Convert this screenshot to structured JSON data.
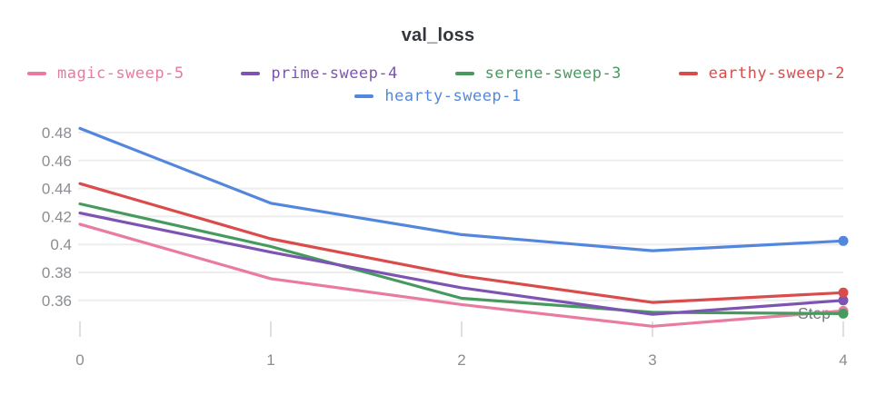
{
  "header": {
    "title": "val_loss"
  },
  "chart_data": {
    "type": "line",
    "title": "val_loss",
    "xlabel": "Step",
    "ylabel": "",
    "x": [
      0,
      1,
      2,
      3,
      4
    ],
    "x_tick_labels": [
      "0",
      "1",
      "2",
      "3",
      "4"
    ],
    "x_range": [
      0,
      4
    ],
    "y_ticks": [
      0.48,
      0.46,
      0.44,
      0.42,
      0.4,
      0.38,
      0.36
    ],
    "y_tick_labels": [
      "0.48",
      "0.46",
      "0.44",
      "0.42",
      "0.4",
      "0.38",
      "0.36"
    ],
    "ylim": [
      0.333,
      0.487
    ],
    "grid": "horizontal",
    "legend_position": "top",
    "end_markers": true,
    "series": [
      {
        "name": "magic-sweep-5",
        "color": "#E87B9F",
        "values": [
          0.4145,
          0.3755,
          0.357,
          0.3415,
          0.3525
        ]
      },
      {
        "name": "prime-sweep-4",
        "color": "#7D54B2",
        "values": [
          0.4225,
          0.3945,
          0.369,
          0.35,
          0.36
        ]
      },
      {
        "name": "serene-sweep-3",
        "color": "#479A5F",
        "values": [
          0.429,
          0.3985,
          0.3615,
          0.3515,
          0.3505
        ]
      },
      {
        "name": "earthy-sweep-2",
        "color": "#DA4C4C",
        "values": [
          0.4435,
          0.404,
          0.3775,
          0.3585,
          0.3655
        ]
      },
      {
        "name": "hearty-sweep-1",
        "color": "#5387DD",
        "values": [
          0.483,
          0.4295,
          0.407,
          0.3955,
          0.4025
        ]
      }
    ],
    "legend_rows": [
      [
        "magic-sweep-5",
        "prime-sweep-4",
        "serene-sweep-3",
        "earthy-sweep-2"
      ],
      [
        "hearty-sweep-1"
      ]
    ],
    "draw_order": [
      "magic-sweep-5",
      "serene-sweep-3",
      "prime-sweep-4",
      "earthy-sweep-2",
      "hearty-sweep-1"
    ]
  },
  "style_colors": {
    "gridline": "#ededed",
    "tick_mark": "#dfdfdf",
    "tick_label": "#8a8d91",
    "axis_label": "#76787b",
    "title": "#33373c"
  }
}
